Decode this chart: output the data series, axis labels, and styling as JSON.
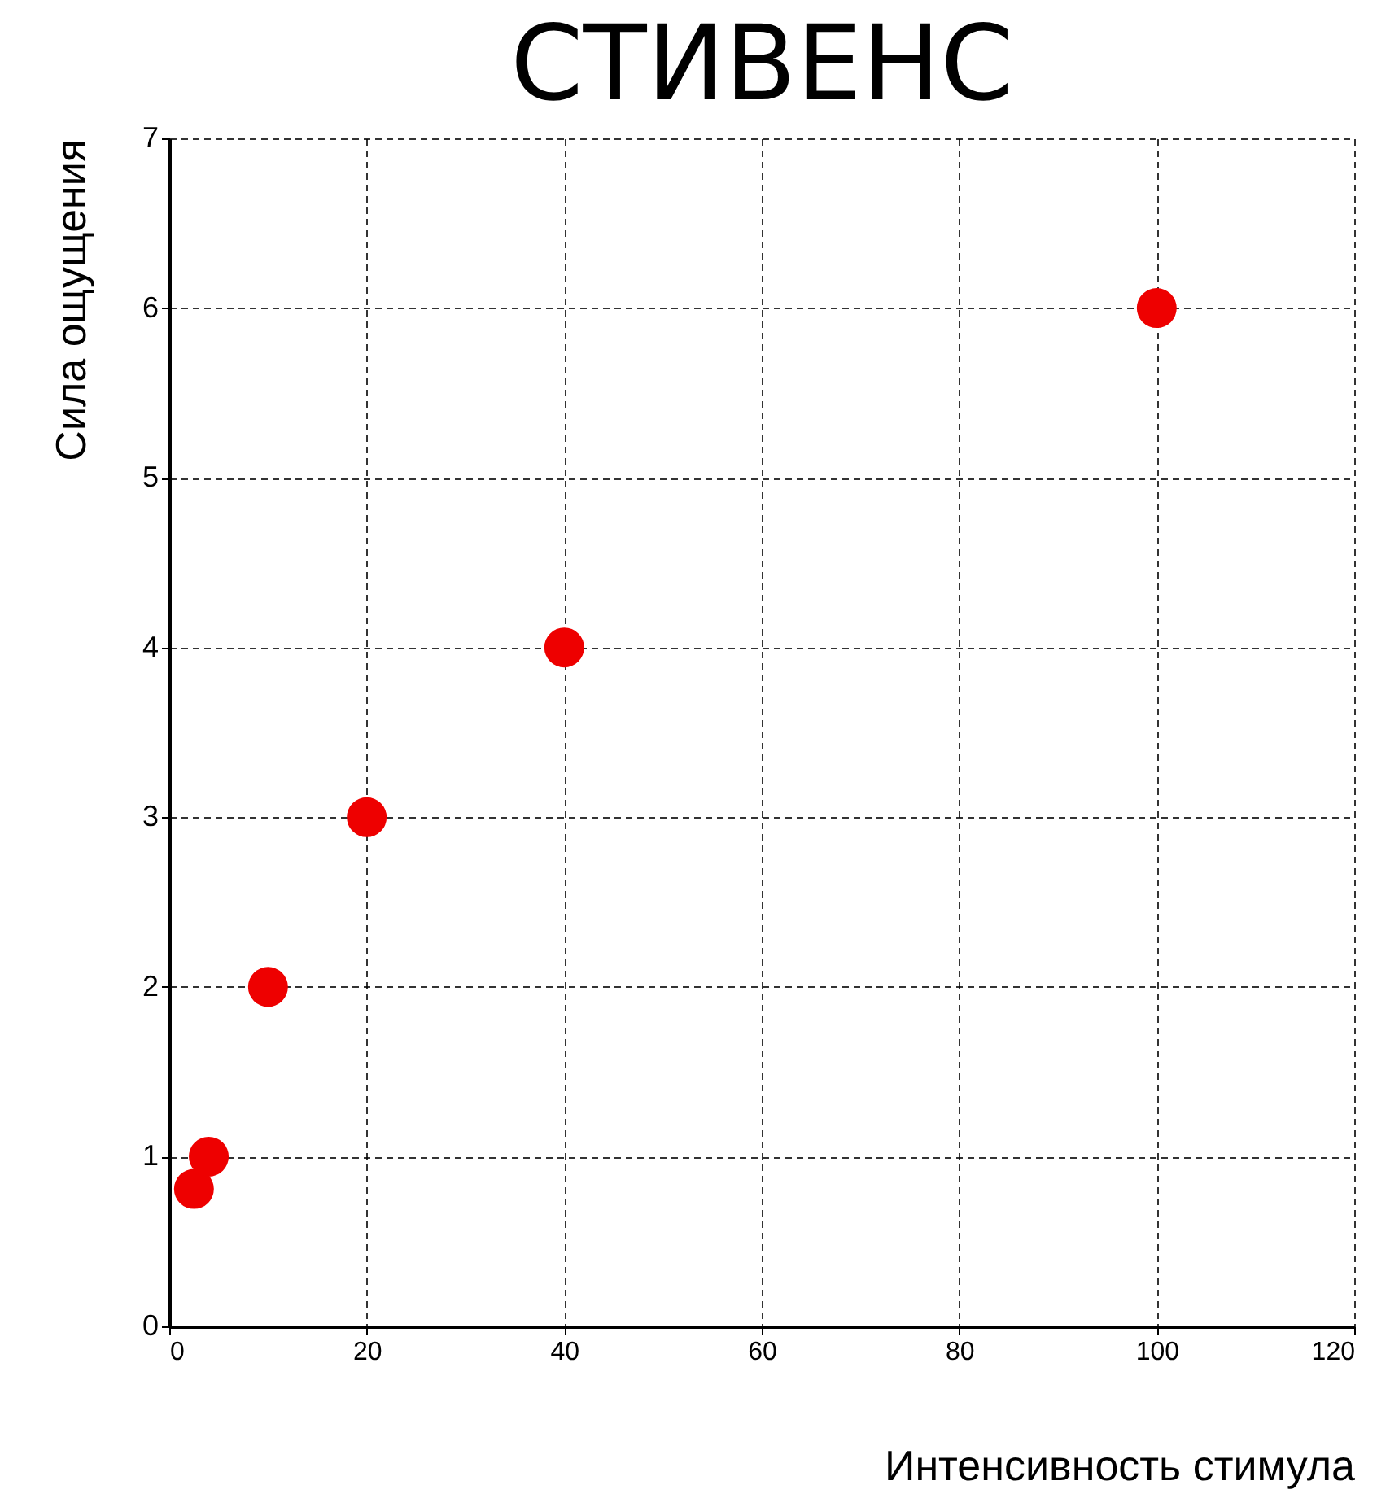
{
  "chart_data": {
    "type": "scatter",
    "title": "СТИВЕНС",
    "xlabel": "Интенсивность стимула",
    "ylabel": "Сила ощущения",
    "x": [
      2.5,
      4,
      10,
      20,
      40,
      100
    ],
    "series": [
      {
        "color": "#ee0000",
        "values": [
          0.81,
          1,
          2,
          3,
          4,
          6
        ]
      }
    ],
    "xlim": [
      0,
      120
    ],
    "xticks": [
      0,
      20,
      40,
      60,
      80,
      100,
      120
    ],
    "ylim": [
      0,
      7
    ],
    "yticks": [
      0,
      1,
      2,
      3,
      4,
      5,
      6,
      7
    ],
    "grid": true,
    "marker": "circle",
    "legend": false
  }
}
